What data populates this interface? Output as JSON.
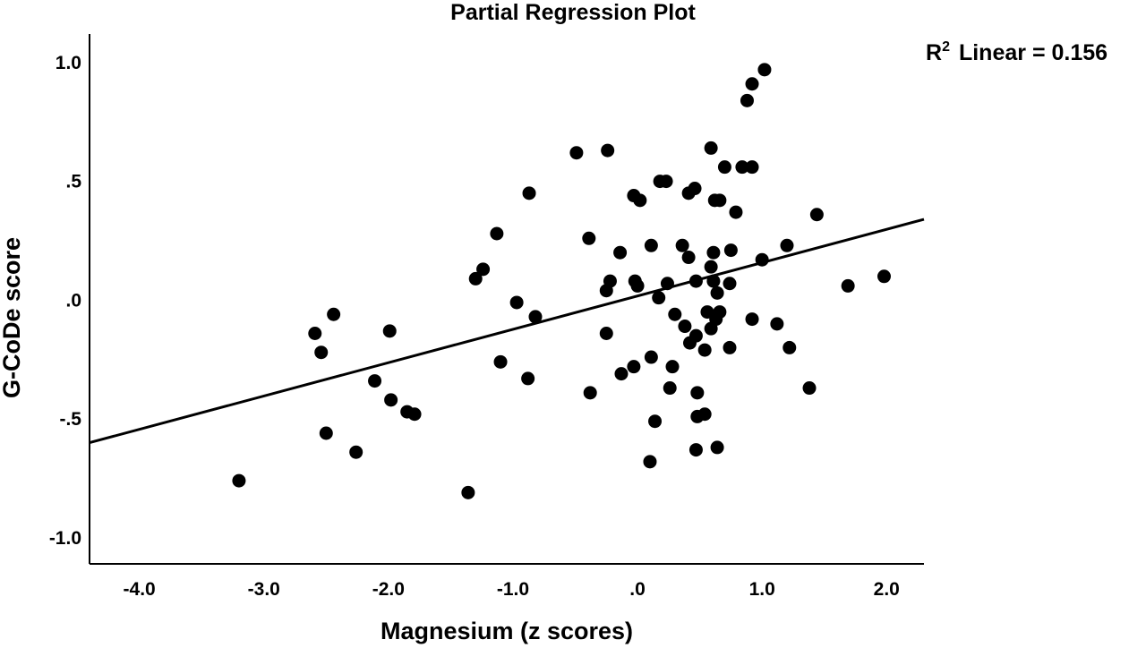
{
  "chart_data": {
    "type": "scatter",
    "title": "Partial Regression Plot",
    "xlabel": "Magnesium (z scores)",
    "ylabel": "G-CoDe score",
    "xlim": [
      -4.4,
      2.3
    ],
    "ylim": [
      -1.11,
      1.12
    ],
    "xticks": [
      -4.0,
      -3.0,
      -2.0,
      -1.0,
      0.0,
      1.0,
      2.0
    ],
    "xtick_labels": [
      "-4.0",
      "-3.0",
      "-2.0",
      "-1.0",
      ".0",
      "1.0",
      "2.0"
    ],
    "yticks": [
      1.0,
      0.5,
      0.0,
      -0.5,
      -1.0
    ],
    "ytick_labels": [
      "1.0",
      ".5",
      ".0",
      "-.5",
      "-1.0"
    ],
    "grid": false,
    "annotation": {
      "r_label": "R",
      "r_sup": "2",
      "text": "Linear = 0.156"
    },
    "fit_line": {
      "x": [
        -4.4,
        2.3
      ],
      "y": [
        -0.6,
        0.34
      ]
    },
    "points": [
      {
        "x": 1.02,
        "y": 0.97
      },
      {
        "x": 0.92,
        "y": 0.91
      },
      {
        "x": 0.88,
        "y": 0.84
      },
      {
        "x": 0.59,
        "y": 0.64
      },
      {
        "x": -0.24,
        "y": 0.63
      },
      {
        "x": -0.49,
        "y": 0.62
      },
      {
        "x": 0.7,
        "y": 0.56
      },
      {
        "x": 0.84,
        "y": 0.56
      },
      {
        "x": 0.92,
        "y": 0.56
      },
      {
        "x": 0.18,
        "y": 0.5
      },
      {
        "x": 0.23,
        "y": 0.5
      },
      {
        "x": 0.46,
        "y": 0.47
      },
      {
        "x": 0.41,
        "y": 0.45
      },
      {
        "x": -0.87,
        "y": 0.45
      },
      {
        "x": -0.03,
        "y": 0.44
      },
      {
        "x": 0.02,
        "y": 0.42
      },
      {
        "x": 0.62,
        "y": 0.42
      },
      {
        "x": 0.66,
        "y": 0.42
      },
      {
        "x": 0.79,
        "y": 0.37
      },
      {
        "x": 1.44,
        "y": 0.36
      },
      {
        "x": -1.13,
        "y": 0.28
      },
      {
        "x": -0.39,
        "y": 0.26
      },
      {
        "x": 0.11,
        "y": 0.23
      },
      {
        "x": 0.36,
        "y": 0.23
      },
      {
        "x": 1.2,
        "y": 0.23
      },
      {
        "x": -0.14,
        "y": 0.2
      },
      {
        "x": 0.61,
        "y": 0.2
      },
      {
        "x": 0.75,
        "y": 0.21
      },
      {
        "x": 0.41,
        "y": 0.18
      },
      {
        "x": 1.0,
        "y": 0.17
      },
      {
        "x": -1.24,
        "y": 0.13
      },
      {
        "x": 0.59,
        "y": 0.14
      },
      {
        "x": 1.98,
        "y": 0.1
      },
      {
        "x": -1.3,
        "y": 0.09
      },
      {
        "x": -0.22,
        "y": 0.08
      },
      {
        "x": -0.02,
        "y": 0.08
      },
      {
        "x": 0.47,
        "y": 0.08
      },
      {
        "x": 0.61,
        "y": 0.08
      },
      {
        "x": 0.74,
        "y": 0.07
      },
      {
        "x": 0.24,
        "y": 0.07
      },
      {
        "x": 0.0,
        "y": 0.06
      },
      {
        "x": 1.69,
        "y": 0.06
      },
      {
        "x": -0.25,
        "y": 0.04
      },
      {
        "x": 0.64,
        "y": 0.03
      },
      {
        "x": 0.17,
        "y": 0.01
      },
      {
        "x": -0.97,
        "y": -0.01
      },
      {
        "x": 0.56,
        "y": -0.05
      },
      {
        "x": 0.66,
        "y": -0.05
      },
      {
        "x": -2.44,
        "y": -0.06
      },
      {
        "x": 0.3,
        "y": -0.06
      },
      {
        "x": -0.82,
        "y": -0.07
      },
      {
        "x": 0.63,
        "y": -0.08
      },
      {
        "x": 0.92,
        "y": -0.08
      },
      {
        "x": 0.38,
        "y": -0.11
      },
      {
        "x": 1.12,
        "y": -0.1
      },
      {
        "x": 0.59,
        "y": -0.12
      },
      {
        "x": -2.59,
        "y": -0.14
      },
      {
        "x": -1.99,
        "y": -0.13
      },
      {
        "x": -0.25,
        "y": -0.14
      },
      {
        "x": 0.47,
        "y": -0.15
      },
      {
        "x": 0.42,
        "y": -0.18
      },
      {
        "x": 0.74,
        "y": -0.2
      },
      {
        "x": 1.22,
        "y": -0.2
      },
      {
        "x": -2.54,
        "y": -0.22
      },
      {
        "x": 0.54,
        "y": -0.21
      },
      {
        "x": 0.11,
        "y": -0.24
      },
      {
        "x": -1.1,
        "y": -0.26
      },
      {
        "x": -0.03,
        "y": -0.28
      },
      {
        "x": 0.28,
        "y": -0.28
      },
      {
        "x": -0.13,
        "y": -0.31
      },
      {
        "x": -2.11,
        "y": -0.34
      },
      {
        "x": -0.88,
        "y": -0.33
      },
      {
        "x": 0.26,
        "y": -0.37
      },
      {
        "x": 1.38,
        "y": -0.37
      },
      {
        "x": -0.38,
        "y": -0.39
      },
      {
        "x": 0.48,
        "y": -0.39
      },
      {
        "x": -1.98,
        "y": -0.42
      },
      {
        "x": -1.85,
        "y": -0.47
      },
      {
        "x": -1.79,
        "y": -0.48
      },
      {
        "x": 0.54,
        "y": -0.48
      },
      {
        "x": 0.48,
        "y": -0.49
      },
      {
        "x": 0.14,
        "y": -0.51
      },
      {
        "x": -2.5,
        "y": -0.56
      },
      {
        "x": 0.64,
        "y": -0.62
      },
      {
        "x": 0.47,
        "y": -0.63
      },
      {
        "x": -2.26,
        "y": -0.64
      },
      {
        "x": 0.1,
        "y": -0.68
      },
      {
        "x": -3.2,
        "y": -0.76
      },
      {
        "x": -1.36,
        "y": -0.81
      }
    ]
  }
}
